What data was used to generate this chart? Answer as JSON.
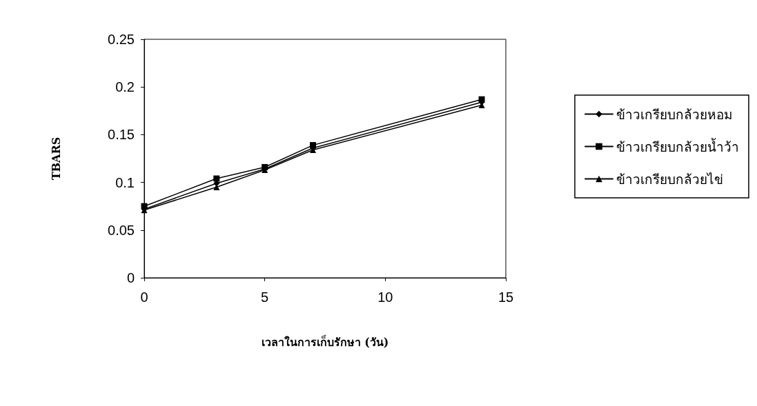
{
  "chart_data": {
    "type": "line",
    "xlabel": "เวลาในการเก็บรักษา (วัน)",
    "ylabel": "TBARS",
    "x": [
      0,
      3,
      5,
      7,
      14
    ],
    "series": [
      {
        "name": "ข้าวเกรียบกล้วยหอม",
        "color": "#000000",
        "marker": "diamond",
        "values": [
          0.072,
          0.099,
          0.114,
          0.136,
          0.184
        ]
      },
      {
        "name": "ข้าวเกรียบกล้วยน้ำว้า",
        "color": "#000000",
        "marker": "square",
        "values": [
          0.075,
          0.104,
          0.116,
          0.139,
          0.187
        ]
      },
      {
        "name": "ข้าวเกรียบกล้วยไข่",
        "color": "#000000",
        "marker": "triangle",
        "values": [
          0.071,
          0.095,
          0.113,
          0.134,
          0.181
        ]
      }
    ],
    "xlim": [
      0,
      15
    ],
    "xticks": [
      0,
      5,
      10,
      15
    ],
    "ylim": [
      0,
      0.25
    ],
    "yticks": [
      0,
      0.05,
      0.1,
      0.15,
      0.2,
      0.25
    ],
    "grid": false,
    "legend": "right",
    "line_style": "solid"
  }
}
